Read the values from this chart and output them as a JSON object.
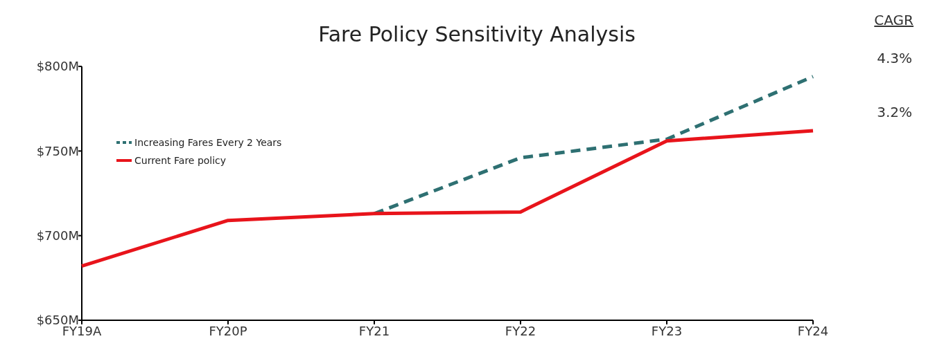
{
  "chart_data": {
    "type": "line",
    "title": "Fare Policy Sensitivity Analysis",
    "categories": [
      "FY19A",
      "FY20P",
      "FY21",
      "FY22",
      "FY23",
      "FY24"
    ],
    "series": [
      {
        "name": "Increasing Fares Every 2 Years",
        "color": "#2e7072",
        "line_style": "dashed",
        "values": [
          null,
          null,
          713,
          746,
          757,
          794
        ]
      },
      {
        "name": "Current Fare policy",
        "color": "#e8141b",
        "line_style": "solid",
        "values": [
          682,
          709,
          713,
          714,
          756,
          762
        ]
      }
    ],
    "ylim": [
      650,
      800
    ],
    "yticks": [
      {
        "value": 650,
        "label": "$650M"
      },
      {
        "value": 700,
        "label": "$700M"
      },
      {
        "value": 750,
        "label": "$750M"
      },
      {
        "value": 800,
        "label": "$800M"
      }
    ],
    "grid": false,
    "legend": "top left",
    "annotations": [
      "CAGR",
      "4.3%",
      "3.2%"
    ]
  }
}
